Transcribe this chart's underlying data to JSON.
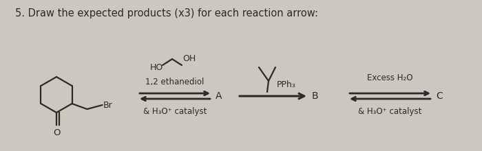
{
  "title": "5. Draw the expected products (x3) for each reaction arrow:",
  "title_fontsize": 10.5,
  "bg_color": "#ccc8c0",
  "text_color": "#2a2a2a",
  "arrow1_label_top": "1,2 ethanediol",
  "arrow1_label_bot": "& H₃O⁺ catalyst",
  "arrow1_end": "A",
  "arrow2_label": "PPh₃",
  "arrow2_end": "B",
  "arrow3_label_top": "Excess H₂O",
  "arrow3_label_bot": "& H₃O⁺ catalyst",
  "arrow3_end": "C"
}
